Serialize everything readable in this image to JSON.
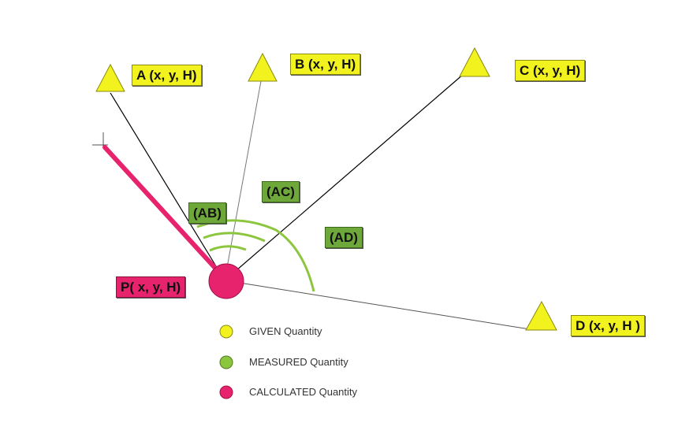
{
  "stations": {
    "A": {
      "label": "A (x, y, H)"
    },
    "B": {
      "label": "B (x, y, H)"
    },
    "C": {
      "label": "C (x, y, H)"
    },
    "D": {
      "label": "D (x, y, H )"
    }
  },
  "angles": {
    "AB": "(AB)",
    "AC": "(AC)",
    "AD": "(AD)"
  },
  "point": {
    "label": "P( x, y, H)"
  },
  "legend": {
    "given": "GIVEN Quantity",
    "measured": "MEASURED Quantity",
    "calculated": "CALCULATED Quantity"
  },
  "colors": {
    "given": "#f2f21e",
    "measured": "#8cc63f",
    "calculated": "#e8236e"
  }
}
